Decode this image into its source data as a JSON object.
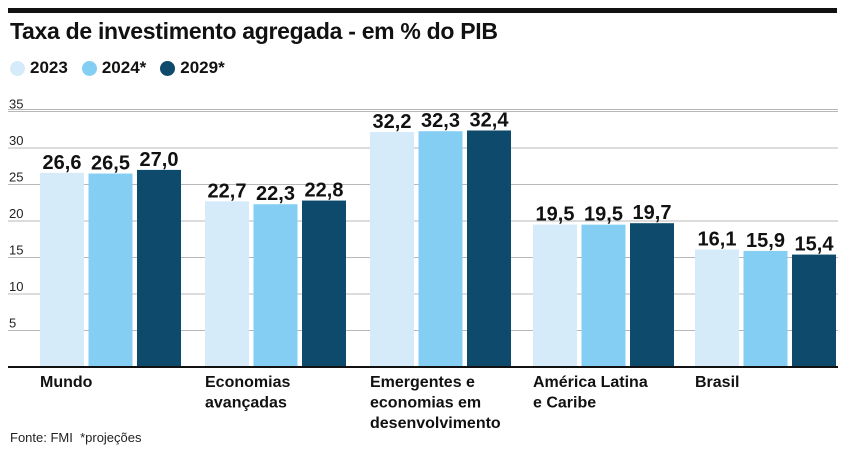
{
  "chart_data": {
    "type": "bar",
    "title": "Taxa de investimento agregada - em % do PIB",
    "categories": [
      "Mundo",
      "Economias\navançadas",
      "Emergentes e\neconomias em\ndesenvolvimento",
      "América Latina\ne Caribe",
      "Brasil"
    ],
    "series": [
      {
        "name": "2023",
        "color": "#d6ebf9",
        "values": [
          26.6,
          22.7,
          32.2,
          19.5,
          16.1
        ],
        "labels": [
          "26,6",
          "22,7",
          "32,2",
          "19,5",
          "16,1"
        ]
      },
      {
        "name": "2024*",
        "color": "#84cef3",
        "values": [
          26.5,
          22.3,
          32.3,
          19.5,
          15.9
        ],
        "labels": [
          "26,5",
          "22,3",
          "32,3",
          "19,5",
          "15,9"
        ]
      },
      {
        "name": "2029*",
        "color": "#0d4a6b",
        "values": [
          27.0,
          22.8,
          32.4,
          19.7,
          15.4
        ],
        "labels": [
          "27,0",
          "22,8",
          "32,4",
          "19,7",
          "15,4"
        ]
      }
    ],
    "yticks": [
      "35",
      "30",
      "25",
      "20",
      "15",
      "10",
      "5"
    ],
    "ylim": [
      0,
      35
    ],
    "grid": true,
    "legend_position": "top-left"
  },
  "footer": {
    "source": "Fonte: FMI  *projeções"
  }
}
